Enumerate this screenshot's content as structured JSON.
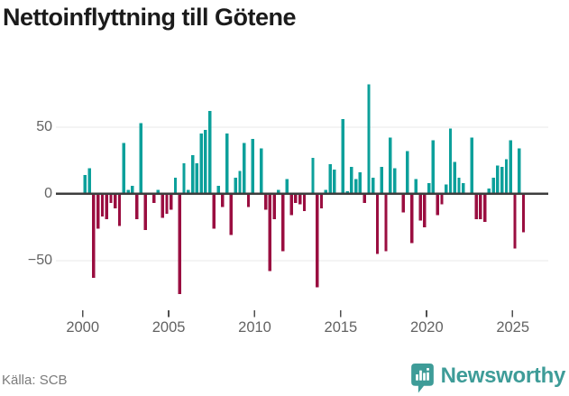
{
  "title": "Nettoinflyttning till Götene",
  "footer": {
    "source": "Källa: SCB",
    "brand": "Newsworthy"
  },
  "colors": {
    "positive": "#0CA09B",
    "negative": "#9A0E40",
    "title_text": "#1b1b1b",
    "axis_text": "#636363",
    "grid_line": "#e8e8e8",
    "zero_line": "#3d3d3d",
    "tick_mark": "#4f4f4f",
    "brand_teal": "#3E9C98",
    "source_text": "#7b7b7b",
    "background": "#ffffff"
  },
  "chart_data": {
    "type": "bar",
    "title": "Nettoinflyttning till Götene",
    "frequency": "quarterly",
    "start_year": 2000,
    "start_quarter": 1,
    "end_year": 2025,
    "end_quarter": 3,
    "values": [
      14,
      19,
      -63,
      -26,
      -17,
      -19,
      -7,
      -11,
      -24,
      38,
      3,
      6,
      -19,
      53,
      -27,
      0,
      -7,
      3,
      -18,
      -15,
      -12,
      12,
      -75,
      23,
      3,
      29,
      23,
      45,
      48,
      62,
      -26,
      6,
      -10,
      45,
      -31,
      12,
      17,
      38,
      -10,
      41,
      0,
      34,
      -12,
      -58,
      -19,
      3,
      -43,
      11,
      -16,
      -7,
      -8,
      -13,
      0,
      27,
      -70,
      -11,
      3,
      22,
      18,
      0,
      56,
      2,
      20,
      11,
      16,
      -7,
      82,
      12,
      -45,
      20,
      -43,
      42,
      19,
      0,
      -14,
      32,
      -37,
      11,
      -20,
      -25,
      8,
      40,
      -16,
      -8,
      7,
      49,
      24,
      12,
      8,
      0,
      42,
      -19,
      -19,
      -21,
      4,
      12,
      21,
      20,
      26,
      40,
      -41,
      34,
      -29
    ],
    "y_ticks": [
      {
        "label": "50",
        "value": 50
      },
      {
        "label": "0",
        "value": 0
      },
      {
        "label": "−50",
        "value": -50
      }
    ],
    "x_ticks": [
      {
        "label": "2000",
        "year": 2000
      },
      {
        "label": "2005",
        "year": 2005
      },
      {
        "label": "2010",
        "year": 2010
      },
      {
        "label": "2015",
        "year": 2015
      },
      {
        "label": "2020",
        "year": 2020
      },
      {
        "label": "2025",
        "year": 2025
      }
    ],
    "ylim": [
      -85,
      92
    ],
    "grid": "horizontal",
    "legend": "none",
    "positive_color": "#0CA09B",
    "negative_color": "#9A0E40"
  }
}
